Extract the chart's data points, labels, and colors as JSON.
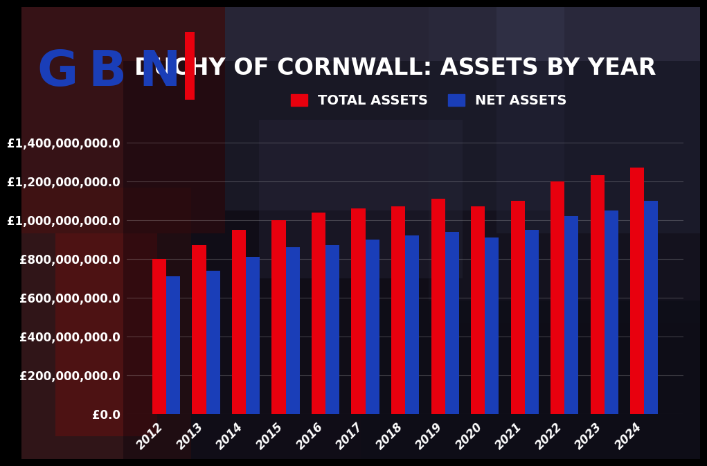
{
  "title": "DUCHY OF CORNWALL: ASSETS BY YEAR",
  "years": [
    2012,
    2013,
    2014,
    2015,
    2016,
    2017,
    2018,
    2019,
    2020,
    2021,
    2022,
    2023,
    2024
  ],
  "total_assets": [
    800000000,
    870000000,
    950000000,
    1000000000,
    1040000000,
    1060000000,
    1070000000,
    1110000000,
    1070000000,
    1100000000,
    1200000000,
    1230000000,
    1270000000
  ],
  "net_assets": [
    710000000,
    740000000,
    810000000,
    860000000,
    870000000,
    900000000,
    920000000,
    940000000,
    910000000,
    950000000,
    1020000000,
    1050000000,
    1100000000
  ],
  "total_color": "#e8000e",
  "net_color": "#1a3eb8",
  "text_color": "#ffffff",
  "ylim": [
    0,
    1400000000
  ],
  "yticks": [
    0,
    200000000,
    400000000,
    600000000,
    800000000,
    1000000000,
    1200000000,
    1400000000
  ],
  "legend_total": "TOTAL ASSETS",
  "legend_net": "NET ASSETS",
  "title_fontsize": 24,
  "legend_fontsize": 14,
  "tick_fontsize": 12,
  "bar_width": 0.35,
  "gbn_G": "#1a3eb8",
  "gbn_B": "#1a3eb8",
  "gbn_N_blue": "#1a3eb8",
  "gbn_bar_red": "#e8000e",
  "bg_colors": [
    "#3a2020",
    "#2a1a2a",
    "#201830",
    "#1a1a28",
    "#2a2030"
  ],
  "chart_bg": "#0a0a14"
}
